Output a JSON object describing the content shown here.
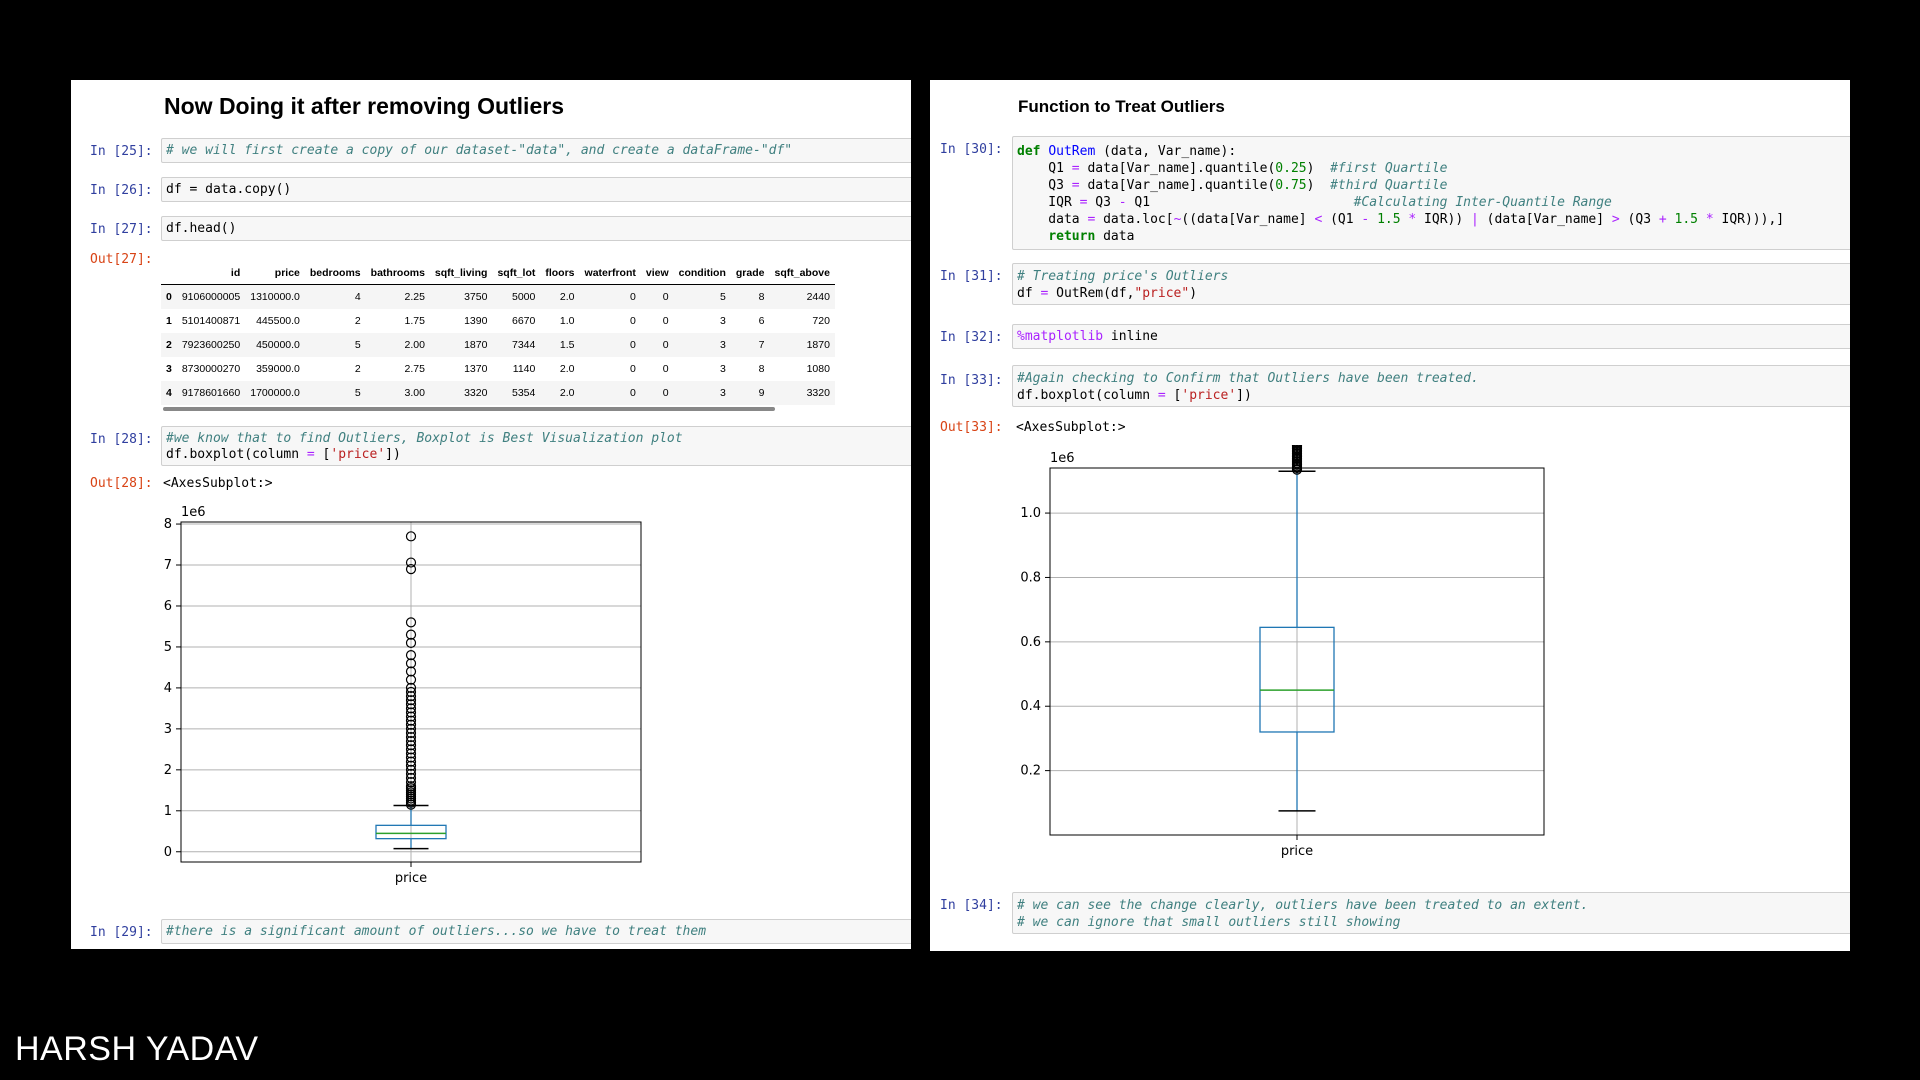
{
  "left": {
    "title": "Now Doing it after removing Outliers",
    "cells": {
      "in25": {
        "prompt": "In [25]:",
        "code": "# we will first create a copy of our dataset-\"data\", and create a dataFrame-\"df\""
      },
      "in26": {
        "prompt": "In [26]:",
        "code": "df = data.copy()"
      },
      "in27": {
        "prompt": "In [27]:",
        "code": "df.head()"
      },
      "out27": {
        "prompt": "Out[27]:"
      },
      "in28": {
        "prompt": "In [28]:",
        "line1": "#we know that to find Outliers, Boxplot is Best Visualization plot",
        "line2_a": "df.boxplot(column ",
        "line2_op": "=",
        "line2_b": " [",
        "line2_str": "'price'",
        "line2_c": "])"
      },
      "out28": {
        "prompt": "Out[28]:",
        "text": "<AxesSubplot:>"
      },
      "in29": {
        "prompt": "In [29]:",
        "code": "#there is a significant amount of outliers...so we have to treat them"
      }
    },
    "table": {
      "columns": [
        "",
        "id",
        "price",
        "bedrooms",
        "bathrooms",
        "sqft_living",
        "sqft_lot",
        "floors",
        "waterfront",
        "view",
        "condition",
        "grade",
        "sqft_above"
      ],
      "rows": [
        [
          "0",
          "9106000005",
          "1310000.0",
          "4",
          "2.25",
          "3750",
          "5000",
          "2.0",
          "0",
          "0",
          "5",
          "8",
          "2440"
        ],
        [
          "1",
          "5101400871",
          "445500.0",
          "2",
          "1.75",
          "1390",
          "6670",
          "1.0",
          "0",
          "0",
          "3",
          "6",
          "720"
        ],
        [
          "2",
          "7923600250",
          "450000.0",
          "5",
          "2.00",
          "1870",
          "7344",
          "1.5",
          "0",
          "0",
          "3",
          "7",
          "1870"
        ],
        [
          "3",
          "8730000270",
          "359000.0",
          "2",
          "2.75",
          "1370",
          "1140",
          "2.0",
          "0",
          "0",
          "3",
          "8",
          "1080"
        ],
        [
          "4",
          "9178601660",
          "1700000.0",
          "5",
          "3.00",
          "3320",
          "5354",
          "2.0",
          "0",
          "0",
          "3",
          "9",
          "3320"
        ]
      ]
    }
  },
  "right": {
    "title": "Function to Treat Outliers",
    "cells": {
      "in30": {
        "prompt": "In [30]:"
      },
      "in31": {
        "prompt": "In [31]:",
        "line1": "# Treating price's Outliers",
        "line2_a": "df ",
        "line2_op": "=",
        "line2_b": " OutRem(df,",
        "line2_str": "\"price\"",
        "line2_c": ")"
      },
      "in32": {
        "prompt": "In [32]:",
        "magic": "%matplotlib",
        "rest": " inline"
      },
      "in33": {
        "prompt": "In [33]:",
        "line1": "#Again checking to Confirm that Outliers have been treated.",
        "line2_a": "df.boxplot(column ",
        "line2_op": "=",
        "line2_b": " [",
        "line2_str": "'price'",
        "line2_c": "])"
      },
      "out33": {
        "prompt": "Out[33]:",
        "text": "<AxesSubplot:>"
      },
      "in34": {
        "prompt": "In [34]:",
        "line1": "# we can see the change clearly, outliers have been treated to an extent.",
        "line2": "# we can ignore that small outliers still showing"
      }
    },
    "func_code": {
      "l1_def": "def",
      "l1_name": "OutRem",
      "l1_rest": " (data, Var_name):",
      "l2_a": "    Q1 ",
      "l2_b": " data[Var_name].quantile(",
      "l2_num": "0.25",
      "l2_c": ")  ",
      "l2_cm": "#first Quartile",
      "l3_a": "    Q3 ",
      "l3_b": " data[Var_name].quantile(",
      "l3_num": "0.75",
      "l3_c": ")  ",
      "l3_cm": "#third Quartile",
      "l4_a": "    IQR ",
      "l4_b": " Q3 ",
      "l4_c": " Q1                          ",
      "l4_cm": "#Calculating Inter-Quantile Range",
      "l5_a": "    data ",
      "l5_b": " data.loc[",
      "l5_c": "((data[Var_name] ",
      "l5_d": " (Q1 ",
      "l5_n1": " 1.5 ",
      "l5_e": " IQR)) ",
      "l5_f": " (data[Var_name] ",
      "l5_g": " (Q3 ",
      "l5_n2": " 1.5 ",
      "l5_h": " IQR))),]",
      "l6_kw": "return",
      "l6_rest": " data",
      "op_eq": "=",
      "op_minus": "-",
      "op_plus": "+",
      "op_star": "*",
      "op_not": "~",
      "op_lt": "<",
      "op_gt": ">",
      "op_or": "|"
    }
  },
  "chart_data": [
    {
      "type": "boxplot",
      "title": "",
      "xlabel": "",
      "categories": [
        "price"
      ],
      "multiplier_label": "1e6",
      "ylim": [
        -0.25,
        8.05
      ],
      "yticks": [
        0,
        1,
        2,
        3,
        4,
        5,
        6,
        7,
        8
      ],
      "ytick_labels": [
        "0",
        "1",
        "2",
        "3",
        "4",
        "5",
        "6",
        "7",
        "8"
      ],
      "box": {
        "q1": 0.32,
        "median": 0.45,
        "q3": 0.645,
        "whisker_low": 0.075,
        "whisker_high": 1.13
      },
      "outliers": [
        1.15,
        1.2,
        1.25,
        1.3,
        1.35,
        1.4,
        1.45,
        1.5,
        1.55,
        1.6,
        1.7,
        1.8,
        1.9,
        2.0,
        2.1,
        2.2,
        2.3,
        2.4,
        2.5,
        2.6,
        2.7,
        2.8,
        2.9,
        3.0,
        3.1,
        3.2,
        3.3,
        3.4,
        3.5,
        3.6,
        3.7,
        3.8,
        3.9,
        4.0,
        4.2,
        4.4,
        4.6,
        4.8,
        5.1,
        5.3,
        5.6,
        6.9,
        7.06,
        7.7
      ],
      "grid": true,
      "colors": {
        "box": "#1f77b4",
        "median": "#2ca02c",
        "grid": "#b0b0b0"
      }
    },
    {
      "type": "boxplot",
      "title": "",
      "xlabel": "",
      "categories": [
        "price"
      ],
      "multiplier_label": "1e6",
      "ylim": [
        0.0,
        1.14
      ],
      "yticks": [
        0.2,
        0.4,
        0.6,
        0.8,
        1.0
      ],
      "ytick_labels": [
        "0.2",
        "0.4",
        "0.6",
        "0.8",
        "1.0"
      ],
      "box": {
        "q1": 0.32,
        "median": 0.45,
        "q3": 0.645,
        "whisker_low": 0.075,
        "whisker_high": 1.13
      },
      "outliers": [
        1.135,
        1.14,
        1.145,
        1.15,
        1.155,
        1.16,
        1.165,
        1.17,
        1.175,
        1.18,
        1.185,
        1.19,
        1.195,
        1.2,
        1.205,
        1.21,
        1.215,
        1.22,
        1.225,
        1.23,
        1.235,
        1.24,
        1.245,
        1.25
      ],
      "grid": true,
      "colors": {
        "box": "#1f77b4",
        "median": "#2ca02c",
        "grid": "#b0b0b0"
      }
    }
  ],
  "watermark": "HARSH YADAV"
}
